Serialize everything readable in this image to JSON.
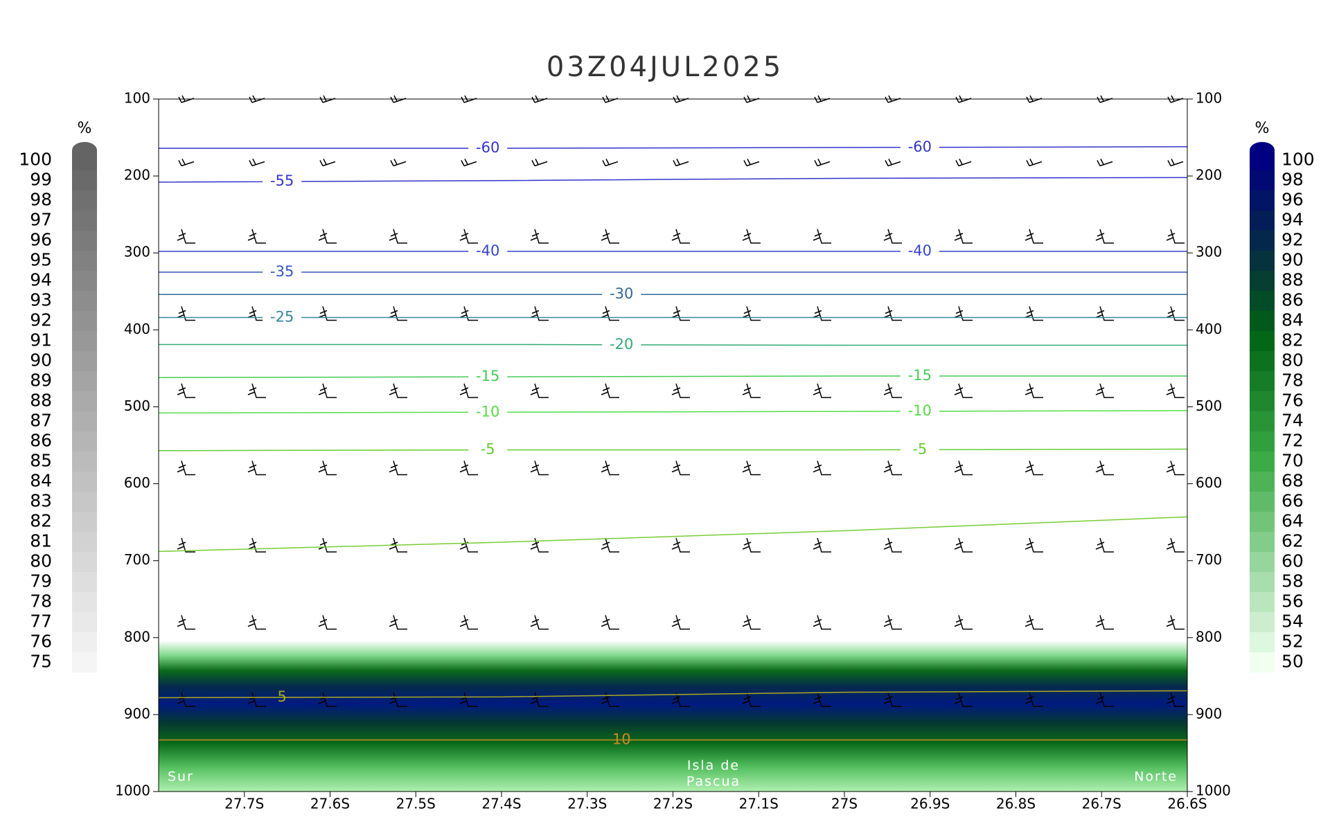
{
  "chart_data": {
    "type": "cross-section",
    "title": "03Z04JUL2025",
    "xlim": [
      -27.8,
      -26.6
    ],
    "xticks": [
      {
        "value": -27.7,
        "label": "27.7S"
      },
      {
        "value": -27.6,
        "label": "27.6S"
      },
      {
        "value": -27.5,
        "label": "27.5S"
      },
      {
        "value": -27.4,
        "label": "27.4S"
      },
      {
        "value": -27.3,
        "label": "27.3S"
      },
      {
        "value": -27.2,
        "label": "27.2S"
      },
      {
        "value": -27.1,
        "label": "27.1S"
      },
      {
        "value": -27.0,
        "label": "27S"
      },
      {
        "value": -26.9,
        "label": "26.9S"
      },
      {
        "value": -26.8,
        "label": "26.8S"
      },
      {
        "value": -26.7,
        "label": "26.7S"
      },
      {
        "value": -26.6,
        "label": "26.6S"
      }
    ],
    "ylim": [
      100,
      1000
    ],
    "yticks": [
      100,
      200,
      300,
      400,
      500,
      600,
      700,
      800,
      900,
      1000
    ],
    "annotations": [
      "Sur",
      "Isla de",
      "Pascua",
      "Norte"
    ],
    "contour_x": [
      -27.8,
      -27.4,
      -27.0,
      -26.6
    ],
    "contours": [
      {
        "level": -60,
        "color": "#3333cc",
        "label_count": 2,
        "pressure": [
          164,
          164,
          163,
          162
        ]
      },
      {
        "level": -55,
        "color": "#3333cc",
        "label_count": 1,
        "pressure": [
          208,
          206,
          203,
          202
        ]
      },
      {
        "level": -40,
        "color": "#3344cc",
        "label_count": 2,
        "pressure": [
          298,
          298,
          298,
          298
        ]
      },
      {
        "level": -35,
        "color": "#3355bb",
        "label_count": 1,
        "pressure": [
          325,
          325,
          325,
          325
        ]
      },
      {
        "level": -30,
        "color": "#336699",
        "label_count": 1,
        "pressure": [
          354,
          354,
          354,
          354
        ]
      },
      {
        "level": -25,
        "color": "#338899",
        "label_count": 1,
        "pressure": [
          384,
          384,
          384,
          384
        ]
      },
      {
        "level": -20,
        "color": "#33aa77",
        "label_count": 1,
        "pressure": [
          419,
          419,
          420,
          420
        ]
      },
      {
        "level": -15,
        "color": "#44cc55",
        "label_count": 2,
        "pressure": [
          462,
          461,
          460,
          460
        ]
      },
      {
        "level": -10,
        "color": "#55dd44",
        "label_count": 2,
        "pressure": [
          508,
          507,
          506,
          505
        ]
      },
      {
        "level": -5,
        "color": "#66cc33",
        "label_count": 2,
        "pressure": [
          557,
          556,
          556,
          555
        ]
      },
      {
        "level": 0,
        "color": "#77cc33",
        "label_count": 0,
        "pressure": [
          688,
          676,
          661,
          643
        ]
      },
      {
        "level": 5,
        "color": "#aaaa22",
        "label_count": 1,
        "pressure": [
          878,
          877,
          871,
          869
        ]
      },
      {
        "level": 10,
        "color": "#cc8822",
        "label_count": 1,
        "pressure": [
          933,
          933,
          933,
          933
        ]
      }
    ],
    "colorbar_left": {
      "unit": "%",
      "values": [
        100,
        99,
        98,
        97,
        96,
        95,
        94,
        93,
        92,
        91,
        90,
        89,
        88,
        87,
        86,
        85,
        84,
        83,
        82,
        81,
        80,
        79,
        78,
        77,
        76,
        75
      ]
    },
    "colorbar_right": {
      "unit": "%",
      "values": [
        100,
        98,
        96,
        94,
        92,
        90,
        88,
        86,
        84,
        82,
        80,
        78,
        76,
        74,
        72,
        70,
        68,
        66,
        64,
        62,
        60,
        58,
        56,
        54,
        52,
        50
      ]
    }
  }
}
